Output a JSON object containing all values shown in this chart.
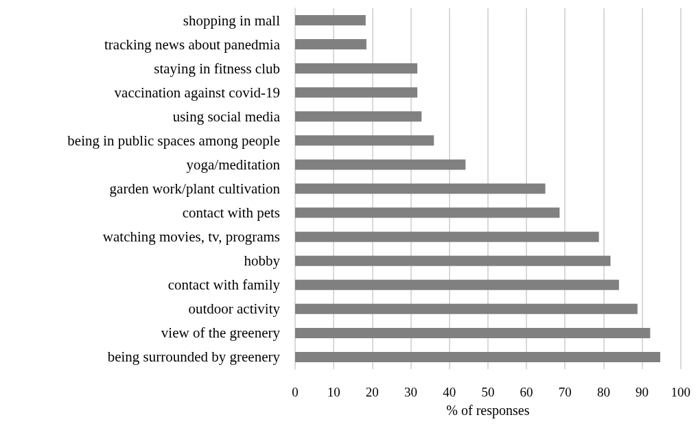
{
  "chart_data": {
    "type": "bar",
    "orientation": "horizontal",
    "xlabel": "% of responses",
    "categories": [
      "shopping in mall",
      "tracking news about panedmia",
      "staying in fitness club",
      "vaccination against covid-19",
      "using social media",
      "being in public spaces among people",
      "yoga/meditation",
      "garden work/plant cultivation",
      "contact with pets",
      "watching movies, tv, programs",
      "hobby",
      "contact with family",
      "outdoor activity",
      "view of the greenery",
      "being surrounded by greenery"
    ],
    "values": [
      18.3,
      18.5,
      31.7,
      31.7,
      32.8,
      36.0,
      44.2,
      64.9,
      68.6,
      78.8,
      81.8,
      84.0,
      88.8,
      92.1,
      94.7
    ],
    "color": "#808080",
    "xlim": [
      0,
      100
    ],
    "xticks": [
      0,
      10,
      20,
      30,
      40,
      50,
      60,
      70,
      80,
      90,
      100
    ],
    "grid": "x"
  }
}
